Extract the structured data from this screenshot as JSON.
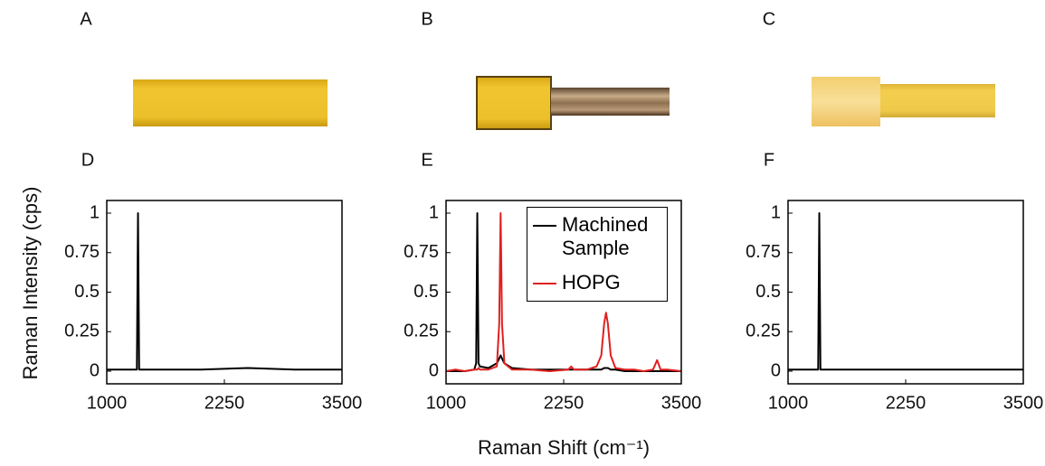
{
  "photo_labels": [
    "A",
    "B",
    "C"
  ],
  "chart_data": [
    {
      "type": "line",
      "panel_label": "D",
      "y_label": "Raman Intensity (cps)",
      "x": [
        1000,
        1200,
        1300,
        1320,
        1332,
        1344,
        1360,
        1600,
        2000,
        2500,
        3000,
        3500
      ],
      "series": [
        {
          "name": null,
          "color": "#000000",
          "values": [
            0.01,
            0.01,
            0.01,
            0.01,
            1,
            0.01,
            0.01,
            0.01,
            0.01,
            0.02,
            0.01,
            0.01
          ]
        }
      ],
      "xlim": [
        1000,
        3500
      ],
      "xticks": [
        1000,
        2250,
        3500
      ],
      "ylim": [
        -0.08,
        1.08
      ],
      "yticks": [
        0,
        0.25,
        0.5,
        0.75,
        1
      ]
    },
    {
      "type": "line",
      "panel_label": "E",
      "x_label": "Raman Shift (cm⁻¹)",
      "legend": "upper right",
      "x": [
        1000,
        1100,
        1200,
        1300,
        1320,
        1332,
        1345,
        1360,
        1450,
        1540,
        1565,
        1580,
        1595,
        1620,
        1700,
        1900,
        2100,
        2300,
        2330,
        2360,
        2500,
        2600,
        2650,
        2680,
        2700,
        2720,
        2750,
        2800,
        2900,
        3000,
        3100,
        3200,
        3243,
        3280,
        3350,
        3500
      ],
      "series": [
        {
          "name": "Machined Sample",
          "color": "#000000",
          "values": [
            0.0,
            0.0,
            0.0,
            0.01,
            0.05,
            1,
            0.05,
            0.03,
            0.02,
            0.05,
            0.08,
            0.1,
            0.08,
            0.05,
            0.02,
            0.01,
            0.01,
            0.01,
            0.01,
            0.01,
            0.01,
            0.01,
            0.01,
            0.02,
            0.02,
            0.02,
            0.01,
            0.01,
            0.0,
            0.0,
            0.0,
            0.0,
            0.0,
            0.0,
            0.0,
            0.0
          ]
        },
        {
          "name": "HOPG",
          "color": "#e02020",
          "values": [
            0.0,
            0.01,
            0.0,
            0.01,
            0.01,
            0.01,
            0.02,
            0.01,
            0.01,
            0.03,
            0.3,
            1,
            0.3,
            0.05,
            0.01,
            0.01,
            0.0,
            0.01,
            0.03,
            0.01,
            0.01,
            0.03,
            0.1,
            0.3,
            0.37,
            0.3,
            0.1,
            0.02,
            0.01,
            0.01,
            0.0,
            0.01,
            0.07,
            0.01,
            0.01,
            0.0
          ]
        }
      ],
      "xlim": [
        1000,
        3500
      ],
      "xticks": [
        1000,
        2250,
        3500
      ],
      "ylim": [
        -0.08,
        1.08
      ],
      "yticks": [
        0,
        0.25,
        0.5,
        0.75,
        1
      ]
    },
    {
      "type": "line",
      "panel_label": "F",
      "x": [
        1000,
        1200,
        1300,
        1320,
        1332,
        1344,
        1360,
        1600,
        2000,
        2500,
        3000,
        3500
      ],
      "series": [
        {
          "name": null,
          "color": "#000000",
          "values": [
            0.01,
            0.01,
            0.01,
            0.01,
            1,
            0.01,
            0.01,
            0.01,
            0.01,
            0.01,
            0.01,
            0.01
          ]
        }
      ],
      "xlim": [
        1000,
        3500
      ],
      "xticks": [
        1000,
        2250,
        3500
      ],
      "ylim": [
        -0.08,
        1.08
      ],
      "yticks": [
        0,
        0.25,
        0.5,
        0.75,
        1
      ]
    }
  ]
}
